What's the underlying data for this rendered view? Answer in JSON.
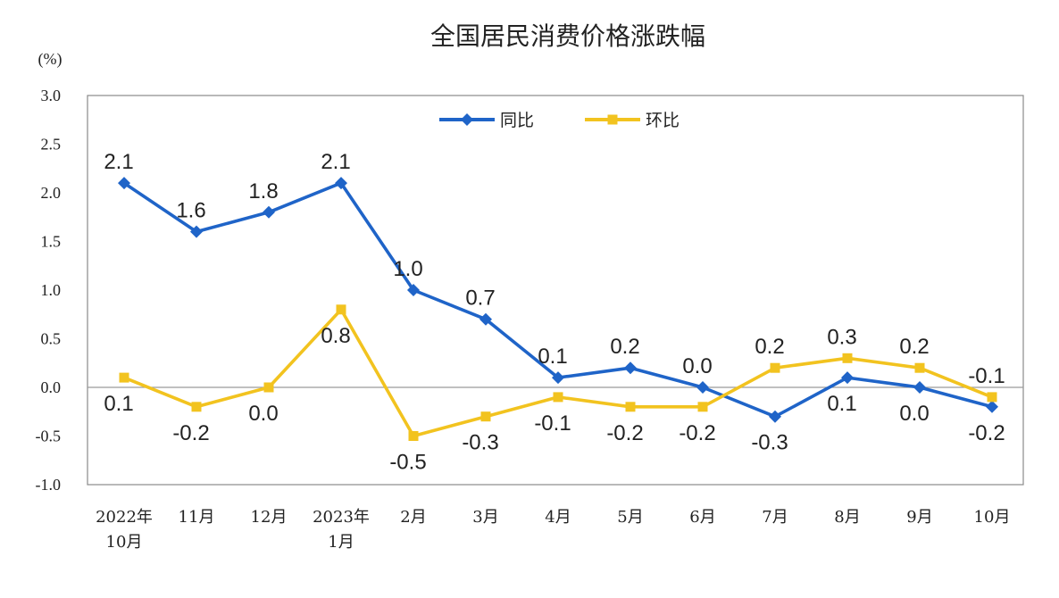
{
  "chart_data": {
    "type": "line",
    "title": "全国居民消费价格涨跌幅",
    "unit_label": "(%)",
    "ylim": [
      -1.0,
      3.0
    ],
    "yticks": [
      "3.0",
      "2.5",
      "2.0",
      "1.5",
      "1.0",
      "0.5",
      "0.0",
      "-0.5",
      "-1.0"
    ],
    "ytick_values": [
      3.0,
      2.5,
      2.0,
      1.5,
      1.0,
      0.5,
      0.0,
      -0.5,
      -1.0
    ],
    "categories": [
      [
        "2022年",
        "10月"
      ],
      [
        "11月"
      ],
      [
        "12月"
      ],
      [
        "2023年",
        "1月"
      ],
      [
        "2月"
      ],
      [
        "3月"
      ],
      [
        "4月"
      ],
      [
        "5月"
      ],
      [
        "6月"
      ],
      [
        "7月"
      ],
      [
        "8月"
      ],
      [
        "9月"
      ],
      [
        "10月"
      ]
    ],
    "legend_position": "top-center",
    "series": [
      {
        "name": "同比",
        "color": "#1f64c8",
        "marker": "diamond",
        "label_position": "above",
        "values": [
          2.1,
          1.6,
          1.8,
          2.1,
          1.0,
          0.7,
          0.1,
          0.2,
          0.0,
          -0.3,
          0.1,
          0.0,
          -0.2
        ],
        "labels": [
          "2.1",
          "1.6",
          "1.8",
          "2.1",
          "1.0",
          "0.7",
          "0.1",
          "0.2",
          "0.0",
          "-0.3",
          "0.1",
          "0.0",
          "-0.2"
        ],
        "label_side": [
          "above",
          "above",
          "above",
          "above",
          "above",
          "above",
          "above",
          "above",
          "above",
          "below",
          "below",
          "below",
          "below"
        ]
      },
      {
        "name": "环比",
        "color": "#f2c31f",
        "marker": "square",
        "values": [
          0.1,
          -0.2,
          0.0,
          0.8,
          -0.5,
          -0.3,
          -0.1,
          -0.2,
          -0.2,
          0.2,
          0.3,
          0.2,
          -0.1
        ],
        "labels": [
          "0.1",
          "-0.2",
          "0.0",
          "0.8",
          "-0.5",
          "-0.3",
          "-0.1",
          "-0.2",
          "-0.2",
          "0.2",
          "0.3",
          "0.2",
          "-0.1"
        ],
        "label_side": [
          "below",
          "below",
          "below",
          "below",
          "below",
          "below",
          "below",
          "below",
          "below",
          "above",
          "above",
          "above",
          "above"
        ]
      }
    ]
  }
}
